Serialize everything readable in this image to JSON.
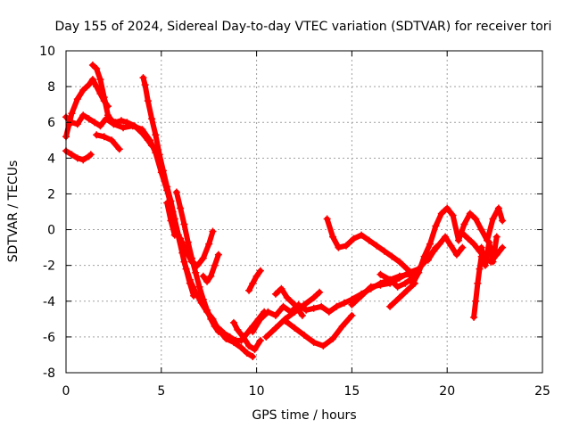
{
  "chart_data": {
    "type": "scatter",
    "title": "Day 155 of 2024, Sidereal Day-to-day VTEC variation (SDTVAR) for receiver tori",
    "xlabel": "GPS time / hours",
    "ylabel": "SDTVAR / TECUs",
    "xlim": [
      0,
      25
    ],
    "ylim": [
      -8,
      10
    ],
    "xticks": [
      "0",
      "5",
      "10",
      "15",
      "20",
      "25"
    ],
    "yticks": [
      "-8",
      "-6",
      "-4",
      "-2",
      "0",
      "2",
      "4",
      "6",
      "8",
      "10"
    ],
    "grid": true,
    "color": "#ff0000",
    "marker": "plus",
    "series": [
      {
        "x": [
          0.0,
          0.3,
          0.6,
          0.9,
          1.2,
          1.5,
          1.8,
          2.1,
          2.5,
          3.0,
          3.5,
          4.0,
          4.4,
          4.7,
          5.0,
          5.3,
          5.6,
          5.9,
          6.2,
          6.5,
          6.8,
          7.1,
          7.4,
          7.7,
          8.0,
          8.4,
          8.8,
          9.2,
          9.5,
          9.8
        ],
        "y": [
          6.3,
          6.0,
          5.9,
          6.4,
          6.2,
          6.0,
          5.8,
          6.2,
          5.9,
          5.7,
          5.8,
          5.6,
          5.0,
          4.3,
          3.2,
          2.2,
          1.0,
          -0.3,
          -1.8,
          -2.8,
          -3.5,
          -4.1,
          -4.6,
          -5.0,
          -5.6,
          -6.1,
          -6.3,
          -6.6,
          -6.9,
          -7.1
        ]
      },
      {
        "x": [
          0.0,
          0.3,
          0.6,
          0.9,
          1.2,
          1.4,
          1.6,
          1.8,
          2.0,
          2.2
        ],
        "y": [
          5.2,
          6.5,
          7.3,
          7.8,
          8.1,
          8.4,
          8.0,
          7.6,
          7.2,
          6.9
        ]
      },
      {
        "x": [
          1.4,
          1.6,
          1.8,
          2.0,
          2.2,
          2.4,
          2.6,
          2.9,
          3.2,
          3.6,
          4.0,
          4.3,
          4.5
        ],
        "y": [
          9.2,
          9.0,
          8.4,
          7.4,
          6.4,
          6.1,
          6.0,
          6.1,
          6.0,
          5.8,
          5.4,
          5.0,
          4.7
        ]
      },
      {
        "x": [
          0.0,
          0.3,
          0.6,
          0.9,
          1.2,
          1.3
        ],
        "y": [
          4.4,
          4.2,
          4.0,
          3.9,
          4.1,
          4.2
        ]
      },
      {
        "x": [
          1.6,
          2.0,
          2.4,
          2.8
        ],
        "y": [
          5.3,
          5.2,
          5.0,
          4.5
        ]
      },
      {
        "x": [
          4.05,
          4.15,
          4.3,
          4.5,
          4.7,
          4.9,
          5.1,
          5.3,
          5.5,
          5.7,
          5.9,
          6.1,
          6.3,
          6.5,
          6.7
        ],
        "y": [
          8.5,
          8.1,
          7.2,
          6.2,
          5.3,
          4.2,
          3.3,
          2.4,
          1.6,
          0.6,
          -0.4,
          -1.3,
          -2.2,
          -3.0,
          -3.7
        ]
      },
      {
        "x": [
          5.8,
          6.0,
          6.2,
          6.4,
          6.6,
          6.8,
          7.0,
          7.2,
          7.4,
          7.6,
          7.8,
          8.0
        ],
        "y": [
          2.1,
          1.2,
          0.3,
          -0.7,
          -1.6,
          -2.4,
          -3.2,
          -3.9,
          -4.5,
          -5.0,
          -5.4,
          -5.7
        ]
      },
      {
        "x": [
          6.0,
          6.3,
          6.6,
          6.9,
          7.2,
          7.5,
          7.7
        ],
        "y": [
          -0.5,
          -1.2,
          -1.8,
          -2.0,
          -1.6,
          -0.8,
          -0.1
        ]
      },
      {
        "x": [
          7.2,
          7.4,
          7.6,
          7.8,
          8.0
        ],
        "y": [
          -2.6,
          -2.9,
          -2.6,
          -2.0,
          -1.4
        ]
      },
      {
        "x": [
          5.3,
          5.5,
          5.7
        ],
        "y": [
          1.5,
          0.5,
          -0.3
        ]
      },
      {
        "x": [
          8.0,
          8.3,
          8.6,
          8.9,
          9.2,
          9.5,
          9.8,
          10.1,
          10.4
        ],
        "y": [
          -5.5,
          -5.8,
          -6.0,
          -6.2,
          -6.2,
          -5.8,
          -5.4,
          -5.0,
          -4.6
        ]
      },
      {
        "x": [
          8.8,
          9.0,
          9.3,
          9.6,
          9.9,
          10.2
        ],
        "y": [
          -5.2,
          -5.6,
          -6.0,
          -6.5,
          -6.7,
          -6.2
        ]
      },
      {
        "x": [
          9.6,
          9.8,
          10.0,
          10.2
        ],
        "y": [
          -3.4,
          -3.0,
          -2.6,
          -2.3
        ]
      },
      {
        "x": [
          9.8,
          10.2,
          10.6,
          11.0,
          11.4,
          11.8,
          12.2,
          12.6,
          13.0,
          13.4,
          13.8,
          14.2,
          14.6,
          15.0,
          15.5,
          16.0,
          16.5,
          17.0,
          17.5,
          18.0,
          18.5
        ],
        "y": [
          -5.7,
          -5.0,
          -4.6,
          -4.8,
          -4.3,
          -4.6,
          -4.2,
          -4.5,
          -4.4,
          -4.3,
          -4.6,
          -4.3,
          -4.1,
          -3.9,
          -3.6,
          -3.3,
          -3.0,
          -2.8,
          -2.6,
          -2.5,
          -2.4
        ]
      },
      {
        "x": [
          10.5,
          11.0,
          11.5,
          12.0,
          12.5,
          13.0,
          13.3
        ],
        "y": [
          -6.0,
          -5.5,
          -5.0,
          -4.6,
          -4.2,
          -3.8,
          -3.5
        ]
      },
      {
        "x": [
          11.5,
          12.0,
          12.5,
          13.0,
          13.5,
          14.0,
          14.5,
          15.0
        ],
        "y": [
          -5.1,
          -5.5,
          -5.9,
          -6.3,
          -6.5,
          -6.1,
          -5.4,
          -4.8
        ]
      },
      {
        "x": [
          11.0,
          11.3,
          11.6,
          12.0,
          12.4
        ],
        "y": [
          -3.6,
          -3.3,
          -3.8,
          -4.2,
          -4.8
        ]
      },
      {
        "x": [
          13.7,
          14.0,
          14.3,
          14.7,
          15.1,
          15.5,
          15.9,
          16.3,
          16.7,
          17.1,
          17.5,
          17.9,
          18.3
        ],
        "y": [
          0.6,
          -0.4,
          -1.0,
          -0.9,
          -0.5,
          -0.3,
          -0.6,
          -0.9,
          -1.2,
          -1.5,
          -1.8,
          -2.2,
          -2.6
        ]
      },
      {
        "x": [
          15.0,
          15.5,
          16.0,
          16.5,
          17.0,
          17.5,
          18.0,
          18.5,
          19.0,
          19.4
        ],
        "y": [
          -4.2,
          -3.7,
          -3.2,
          -3.1,
          -3.0,
          -2.7,
          -2.4,
          -2.2,
          -1.6,
          -1.0
        ]
      },
      {
        "x": [
          16.5,
          17.0,
          17.4,
          17.8,
          18.2
        ],
        "y": [
          -2.5,
          -2.8,
          -3.2,
          -3.0,
          -2.7
        ]
      },
      {
        "x": [
          17.0,
          17.5,
          17.9,
          18.3
        ],
        "y": [
          -4.3,
          -3.8,
          -3.4,
          -3.0
        ]
      },
      {
        "x": [
          18.2,
          18.5,
          18.8,
          19.1,
          19.4,
          19.7,
          20.0,
          20.3,
          20.6,
          20.9,
          21.2,
          21.5,
          21.8,
          22.1,
          22.4,
          22.7,
          22.9
        ],
        "y": [
          -3.0,
          -2.4,
          -1.5,
          -0.8,
          0.2,
          0.9,
          1.2,
          0.8,
          -0.6,
          0.3,
          0.9,
          0.6,
          0.0,
          -0.6,
          0.6,
          1.2,
          0.5
        ]
      },
      {
        "x": [
          19.0,
          19.3,
          19.6,
          19.9,
          20.2,
          20.5,
          20.8
        ],
        "y": [
          -1.7,
          -1.2,
          -0.8,
          -0.4,
          -0.9,
          -1.4,
          -1.0
        ]
      },
      {
        "x": [
          20.8,
          21.1,
          21.4,
          21.7,
          22.0,
          22.3,
          22.6,
          22.9
        ],
        "y": [
          -0.2,
          -0.5,
          -0.8,
          -1.2,
          -1.6,
          -1.8,
          -1.4,
          -1.0
        ]
      },
      {
        "x": [
          21.4,
          21.5,
          21.6,
          21.7,
          21.8
        ],
        "y": [
          -4.9,
          -4.0,
          -3.0,
          -2.2,
          -1.5
        ]
      },
      {
        "x": [
          21.8,
          22.0,
          22.2,
          22.4,
          22.6
        ],
        "y": [
          -1.0,
          -2.0,
          -0.7,
          -1.8,
          -0.4
        ]
      }
    ]
  }
}
